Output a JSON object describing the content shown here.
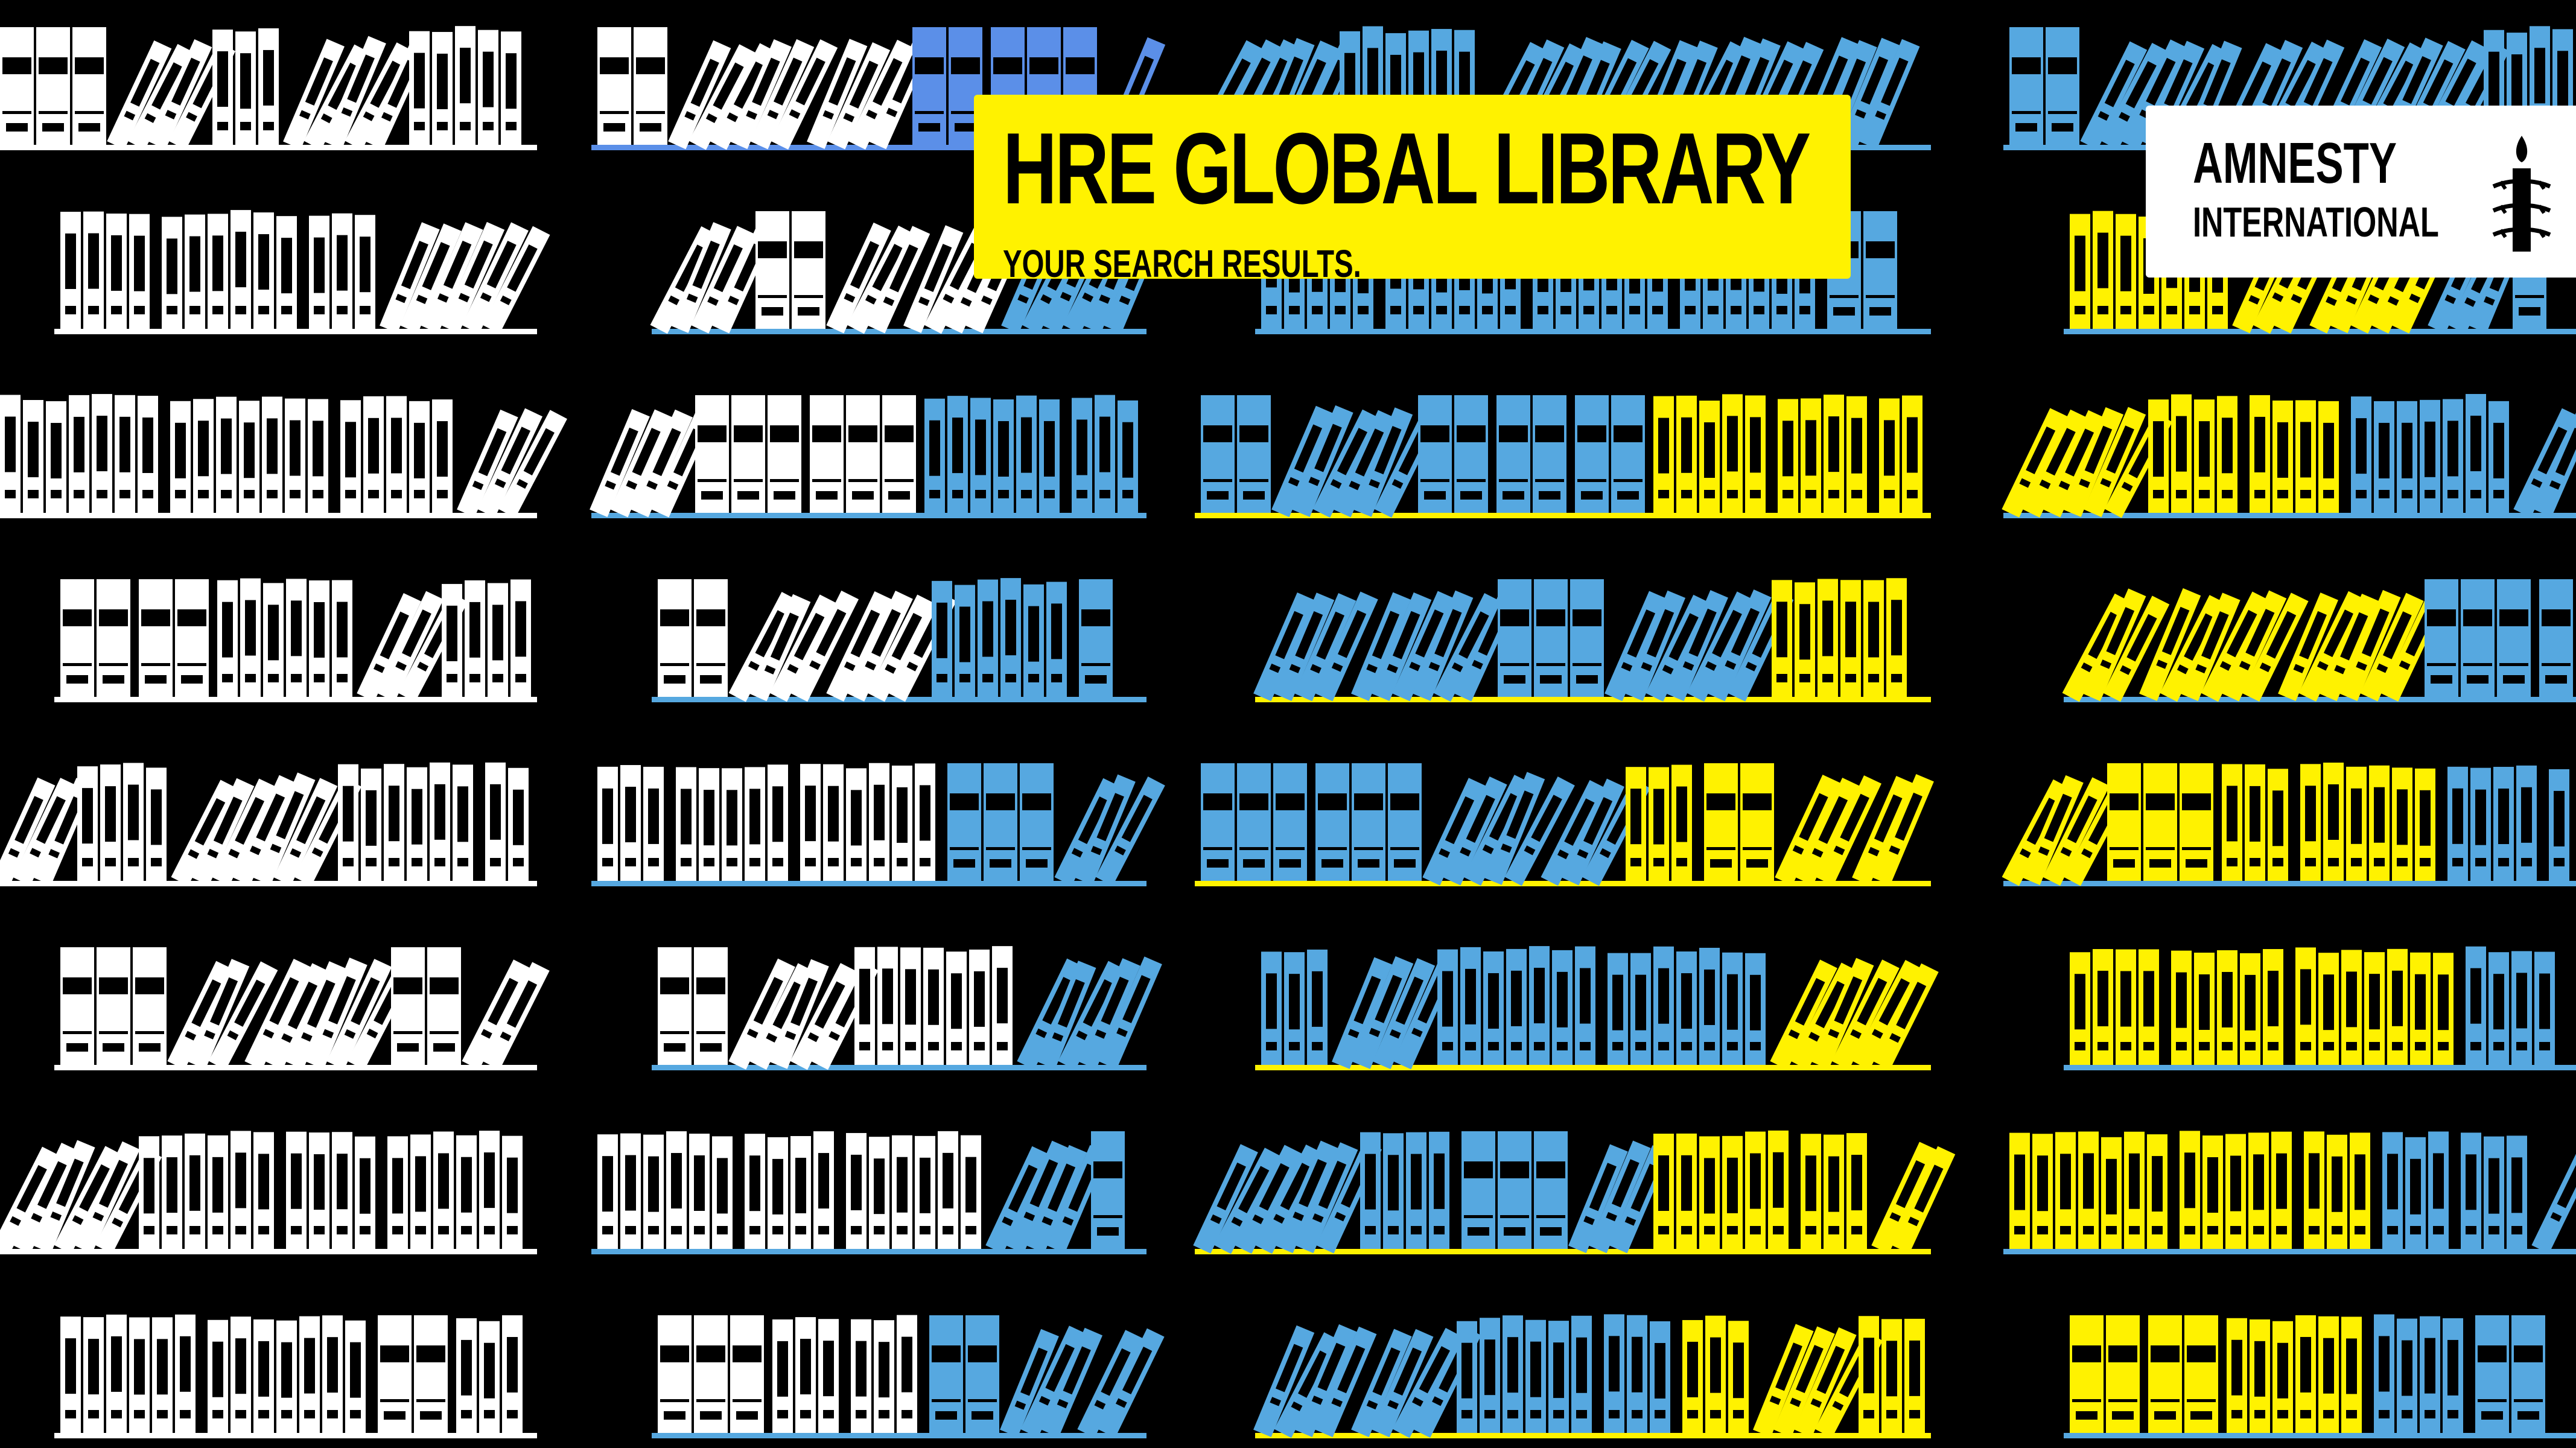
{
  "banner": {
    "title": "HRE GLOBAL LIBRARY",
    "subtitle": "YOUR SEARCH RESULTS."
  },
  "logo": {
    "line1": "AMNESTY",
    "line2": "INTERNATIONAL",
    "icon": "candle-in-barbed-wire-icon"
  },
  "colors": {
    "background": "#000000",
    "white": "#ffffff",
    "blue": "#56a8e0",
    "blue_highlight": "#5b8fe8",
    "yellow": "#fff200"
  },
  "shelves": {
    "rows": 8,
    "columns": 4,
    "book_color_legend": [
      "white",
      "blue",
      "yellow"
    ]
  }
}
